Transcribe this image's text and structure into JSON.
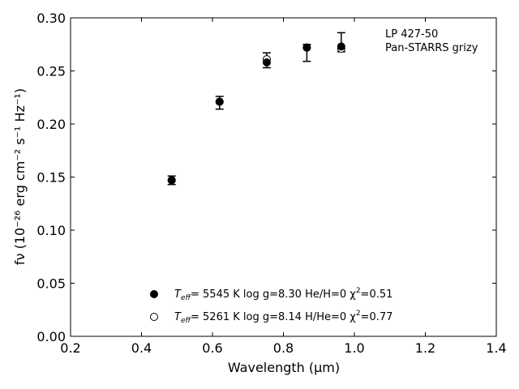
{
  "chart_data": {
    "type": "scatter",
    "xlabel": "Wavelength (μm)",
    "ylabel": "fν (10⁻²⁶ erg cm⁻² s⁻¹ Hz⁻¹)",
    "xlim": [
      0.2,
      1.4
    ],
    "ylim": [
      0.0,
      0.3
    ],
    "x_ticks": [
      "0.2",
      "0.4",
      "0.6",
      "0.8",
      "1.0",
      "1.2",
      "1.4"
    ],
    "y_ticks": [
      "0.00",
      "0.05",
      "0.10",
      "0.15",
      "0.20",
      "0.25",
      "0.30"
    ],
    "grid": false,
    "annotation": {
      "object": "LP 427-50",
      "survey": "Pan-STARRS grizy"
    },
    "observed": {
      "x": [
        0.485,
        0.62,
        0.753,
        0.866,
        0.963
      ],
      "y": [
        0.147,
        0.22,
        0.26,
        0.267,
        0.277
      ],
      "err": [
        0.004,
        0.006,
        0.007,
        0.008,
        0.009
      ]
    },
    "series": [
      {
        "name": "Teff= 5545 K log g=8.30 He/H=0 χ²=0.51",
        "marker": "filled",
        "color": "#000000",
        "x": [
          0.485,
          0.62,
          0.753,
          0.866,
          0.963
        ],
        "y": [
          0.147,
          0.221,
          0.258,
          0.272,
          0.273
        ]
      },
      {
        "name": "Teff= 5261 K log g=8.14 H/He=0 χ²=0.77",
        "marker": "open",
        "color": "#000000",
        "x": [
          0.485,
          0.62,
          0.753,
          0.866,
          0.963
        ],
        "y": [
          0.147,
          0.221,
          0.261,
          0.272,
          0.271
        ]
      }
    ],
    "legend": {
      "placement": "bottom-center",
      "entries": [
        {
          "teff_label": "T",
          "teff_sub": "eff",
          "text": "=  5545 K  log g=8.30  He/H=0  χ",
          "chi_sup": "2",
          "chi_val": "=0.51"
        },
        {
          "teff_label": "T",
          "teff_sub": "eff",
          "text": "=  5261 K  log g=8.14  H/He=0  χ",
          "chi_sup": "2",
          "chi_val": "=0.77"
        }
      ]
    }
  }
}
